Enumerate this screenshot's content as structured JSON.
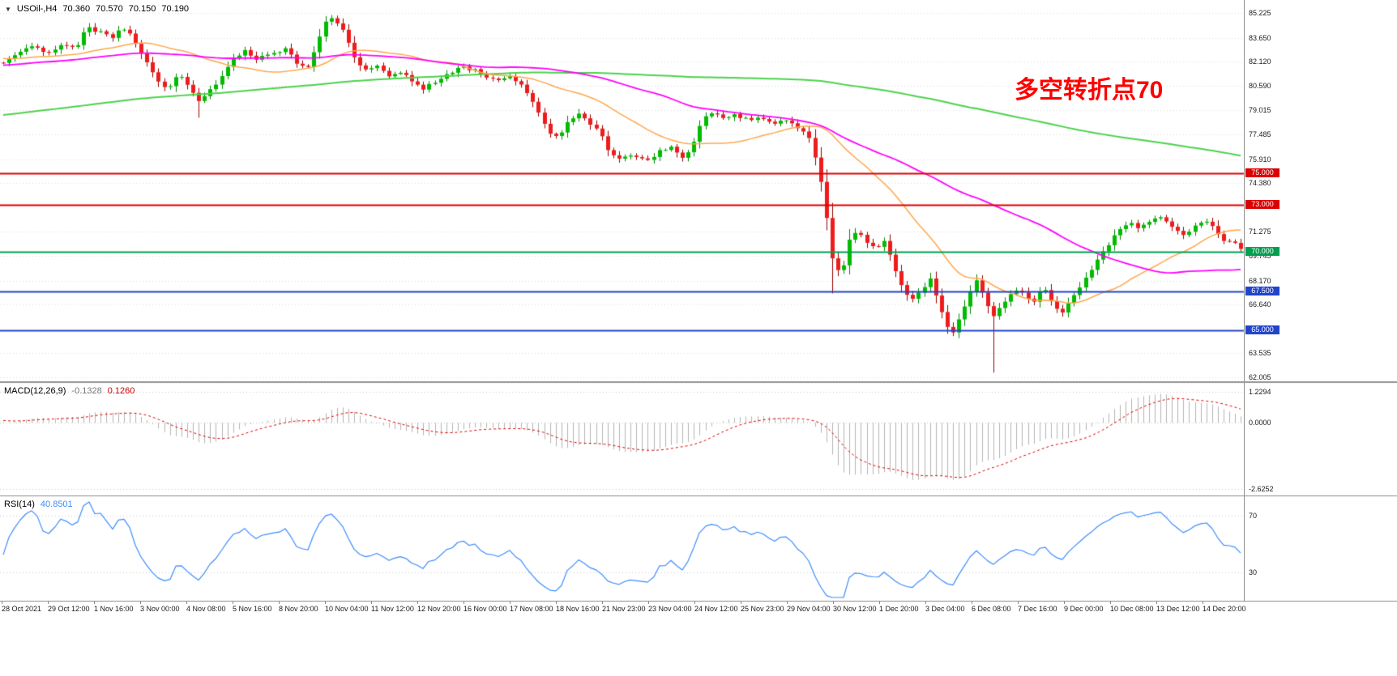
{
  "chart_data": {
    "type": "candlestick",
    "header": {
      "dropdown_icon": "▼",
      "symbol": "USOil-,H4",
      "open": "70.360",
      "high": "70.570",
      "low": "70.150",
      "close": "70.190"
    },
    "annotation": {
      "text": "多空转折点70",
      "color": "#ff0000"
    },
    "price_panel": {
      "axis_top_price": 85.225,
      "axis_bottom_price": 62.005,
      "y_axis_labels": [
        85.225,
        83.65,
        82.12,
        80.59,
        79.015,
        77.485,
        75.91,
        74.38,
        71.275,
        69.745,
        68.17,
        66.64,
        63.535,
        62.005
      ],
      "horizontal_lines": [
        {
          "price": 75.0,
          "label": "75.000",
          "color": "#dd0000"
        },
        {
          "price": 73.0,
          "label": "73.000",
          "color": "#dd0000"
        },
        {
          "price": 70.0,
          "label": "70.000",
          "color": "#00a050"
        },
        {
          "price": 67.5,
          "label": "67.500",
          "color": "#2244cc"
        },
        {
          "price": 65.0,
          "label": "65.000",
          "color": "#2244cc"
        }
      ],
      "moving_averages": [
        {
          "name": "ma-slow",
          "period": 200,
          "color": "#4cd24c",
          "width": 2
        },
        {
          "name": "ma-fast",
          "period": 24,
          "color": "#ffa64d",
          "width": 1.5
        },
        {
          "name": "ma-medium",
          "period": 60,
          "color": "#ff00ff",
          "width": 1.8
        }
      ],
      "candles": {
        "count": 216,
        "up_color": "#00bb00",
        "up_edge": "#008800",
        "down_color": "#ee1c1c",
        "down_edge": "#990000",
        "pre_anchors": [
          [
            -1,
            73.5
          ],
          [
            -0.7,
            76.5
          ],
          [
            -0.45,
            79.0
          ],
          [
            -0.25,
            81.2
          ],
          [
            -0.1,
            82.4
          ],
          [
            -0.02,
            82.3
          ]
        ],
        "close_anchors": [
          [
            0,
            82.0
          ],
          [
            0.01,
            82.6
          ],
          [
            0.022,
            83.1
          ],
          [
            0.035,
            82.7
          ],
          [
            0.048,
            83.2
          ],
          [
            0.058,
            82.9
          ],
          [
            0.068,
            84.3
          ],
          [
            0.078,
            84.0
          ],
          [
            0.088,
            83.6
          ],
          [
            0.096,
            84.4
          ],
          [
            0.105,
            83.6
          ],
          [
            0.115,
            82.2
          ],
          [
            0.125,
            80.9
          ],
          [
            0.133,
            80.3
          ],
          [
            0.141,
            81.3
          ],
          [
            0.15,
            80.6
          ],
          [
            0.158,
            79.6
          ],
          [
            0.165,
            80.2
          ],
          [
            0.175,
            80.9
          ],
          [
            0.185,
            82.2
          ],
          [
            0.195,
            82.9
          ],
          [
            0.205,
            82.3
          ],
          [
            0.215,
            82.6
          ],
          [
            0.228,
            82.9
          ],
          [
            0.238,
            82.0
          ],
          [
            0.247,
            81.7
          ],
          [
            0.255,
            83.6
          ],
          [
            0.262,
            84.9
          ],
          [
            0.268,
            84.8
          ],
          [
            0.275,
            84.2
          ],
          [
            0.283,
            82.4
          ],
          [
            0.292,
            81.6
          ],
          [
            0.302,
            81.9
          ],
          [
            0.312,
            81.2
          ],
          [
            0.322,
            81.4
          ],
          [
            0.33,
            80.9
          ],
          [
            0.34,
            80.4
          ],
          [
            0.35,
            80.9
          ],
          [
            0.36,
            81.4
          ],
          [
            0.37,
            81.8
          ],
          [
            0.38,
            81.6
          ],
          [
            0.39,
            81.2
          ],
          [
            0.4,
            80.9
          ],
          [
            0.41,
            81.2
          ],
          [
            0.42,
            80.5
          ],
          [
            0.43,
            79.2
          ],
          [
            0.44,
            77.7
          ],
          [
            0.448,
            77.2
          ],
          [
            0.456,
            78.2
          ],
          [
            0.465,
            78.9
          ],
          [
            0.474,
            78.2
          ],
          [
            0.482,
            77.6
          ],
          [
            0.49,
            76.3
          ],
          [
            0.5,
            75.9
          ],
          [
            0.51,
            76.2
          ],
          [
            0.52,
            75.8
          ],
          [
            0.53,
            76.4
          ],
          [
            0.54,
            76.7
          ],
          [
            0.548,
            76.0
          ],
          [
            0.556,
            76.5
          ],
          [
            0.564,
            78.4
          ],
          [
            0.572,
            78.9
          ],
          [
            0.582,
            78.5
          ],
          [
            0.592,
            78.7
          ],
          [
            0.602,
            78.4
          ],
          [
            0.612,
            78.6
          ],
          [
            0.622,
            78.2
          ],
          [
            0.632,
            78.3
          ],
          [
            0.642,
            77.9
          ],
          [
            0.65,
            77.6
          ],
          [
            0.658,
            75.5
          ],
          [
            0.664,
            72.8
          ],
          [
            0.67,
            69.5
          ],
          [
            0.677,
            68.3
          ],
          [
            0.684,
            70.9
          ],
          [
            0.691,
            71.4
          ],
          [
            0.698,
            70.6
          ],
          [
            0.705,
            70.1
          ],
          [
            0.712,
            70.7
          ],
          [
            0.719,
            69.2
          ],
          [
            0.727,
            67.6
          ],
          [
            0.735,
            66.9
          ],
          [
            0.742,
            67.6
          ],
          [
            0.749,
            68.3
          ],
          [
            0.755,
            66.9
          ],
          [
            0.762,
            65.2
          ],
          [
            0.768,
            64.8
          ],
          [
            0.775,
            66.2
          ],
          [
            0.781,
            67.4
          ],
          [
            0.787,
            68.3
          ],
          [
            0.793,
            67.0
          ],
          [
            0.799,
            65.9
          ],
          [
            0.805,
            66.4
          ],
          [
            0.812,
            67.1
          ],
          [
            0.819,
            67.5
          ],
          [
            0.826,
            67.2
          ],
          [
            0.833,
            66.9
          ],
          [
            0.84,
            67.8
          ],
          [
            0.848,
            66.6
          ],
          [
            0.855,
            66.1
          ],
          [
            0.862,
            67.0
          ],
          [
            0.869,
            67.6
          ],
          [
            0.876,
            68.5
          ],
          [
            0.883,
            69.4
          ],
          [
            0.89,
            70.2
          ],
          [
            0.897,
            70.9
          ],
          [
            0.904,
            71.6
          ],
          [
            0.911,
            71.9
          ],
          [
            0.918,
            71.5
          ],
          [
            0.925,
            71.8
          ],
          [
            0.932,
            72.3
          ],
          [
            0.939,
            72.0
          ],
          [
            0.946,
            71.5
          ],
          [
            0.953,
            71.0
          ],
          [
            0.96,
            71.4
          ],
          [
            0.967,
            71.9
          ],
          [
            0.974,
            72.0
          ],
          [
            0.981,
            71.2
          ],
          [
            0.988,
            70.6
          ],
          [
            0.995,
            70.5
          ],
          [
            1.0,
            70.19
          ]
        ],
        "special_wicks": [
          {
            "t": 0.265,
            "high": 85.05
          },
          {
            "t": 0.158,
            "low": 78.55
          },
          {
            "t": 0.672,
            "low": 67.35
          },
          {
            "t": 0.802,
            "low": 62.3
          }
        ]
      }
    },
    "macd_panel": {
      "label": "MACD(12,26,9)",
      "value_main": "-0.1328",
      "value_signal": "0.1260",
      "fast": 12,
      "slow": 26,
      "signal": 9,
      "hist_color": "#b3b3b3",
      "signal_color": "#dd0000",
      "y_axis_labels": [
        {
          "value": 1.2294,
          "text": "1.2294"
        },
        {
          "value": 0.0,
          "text": "0.0000"
        },
        {
          "value": -2.6252,
          "text": "-2.6252"
        }
      ]
    },
    "rsi_panel": {
      "label": "RSI(14)",
      "value": "40.8501",
      "period": 14,
      "levels": [
        70,
        30
      ],
      "line_color": "#3d8bfd"
    },
    "time_axis": {
      "labels": [
        "28 Oct 2021",
        "29 Oct 12:00",
        "1 Nov 16:00",
        "3 Nov 00:00",
        "4 Nov 08:00",
        "5 Nov 16:00",
        "8 Nov 20:00",
        "10 Nov 04:00",
        "11 Nov 12:00",
        "12 Nov 20:00",
        "16 Nov 00:00",
        "17 Nov 08:00",
        "18 Nov 16:00",
        "21 Nov 23:00",
        "23 Nov 04:00",
        "24 Nov 12:00",
        "25 Nov 23:00",
        "29 Nov 04:00",
        "30 Nov 12:00",
        "1 Dec 20:00",
        "3 Dec 04:00",
        "6 Dec 08:00",
        "7 Dec 16:00",
        "9 Dec 00:00",
        "10 Dec 08:00",
        "13 Dec 12:00",
        "14 Dec 20:00"
      ]
    }
  }
}
